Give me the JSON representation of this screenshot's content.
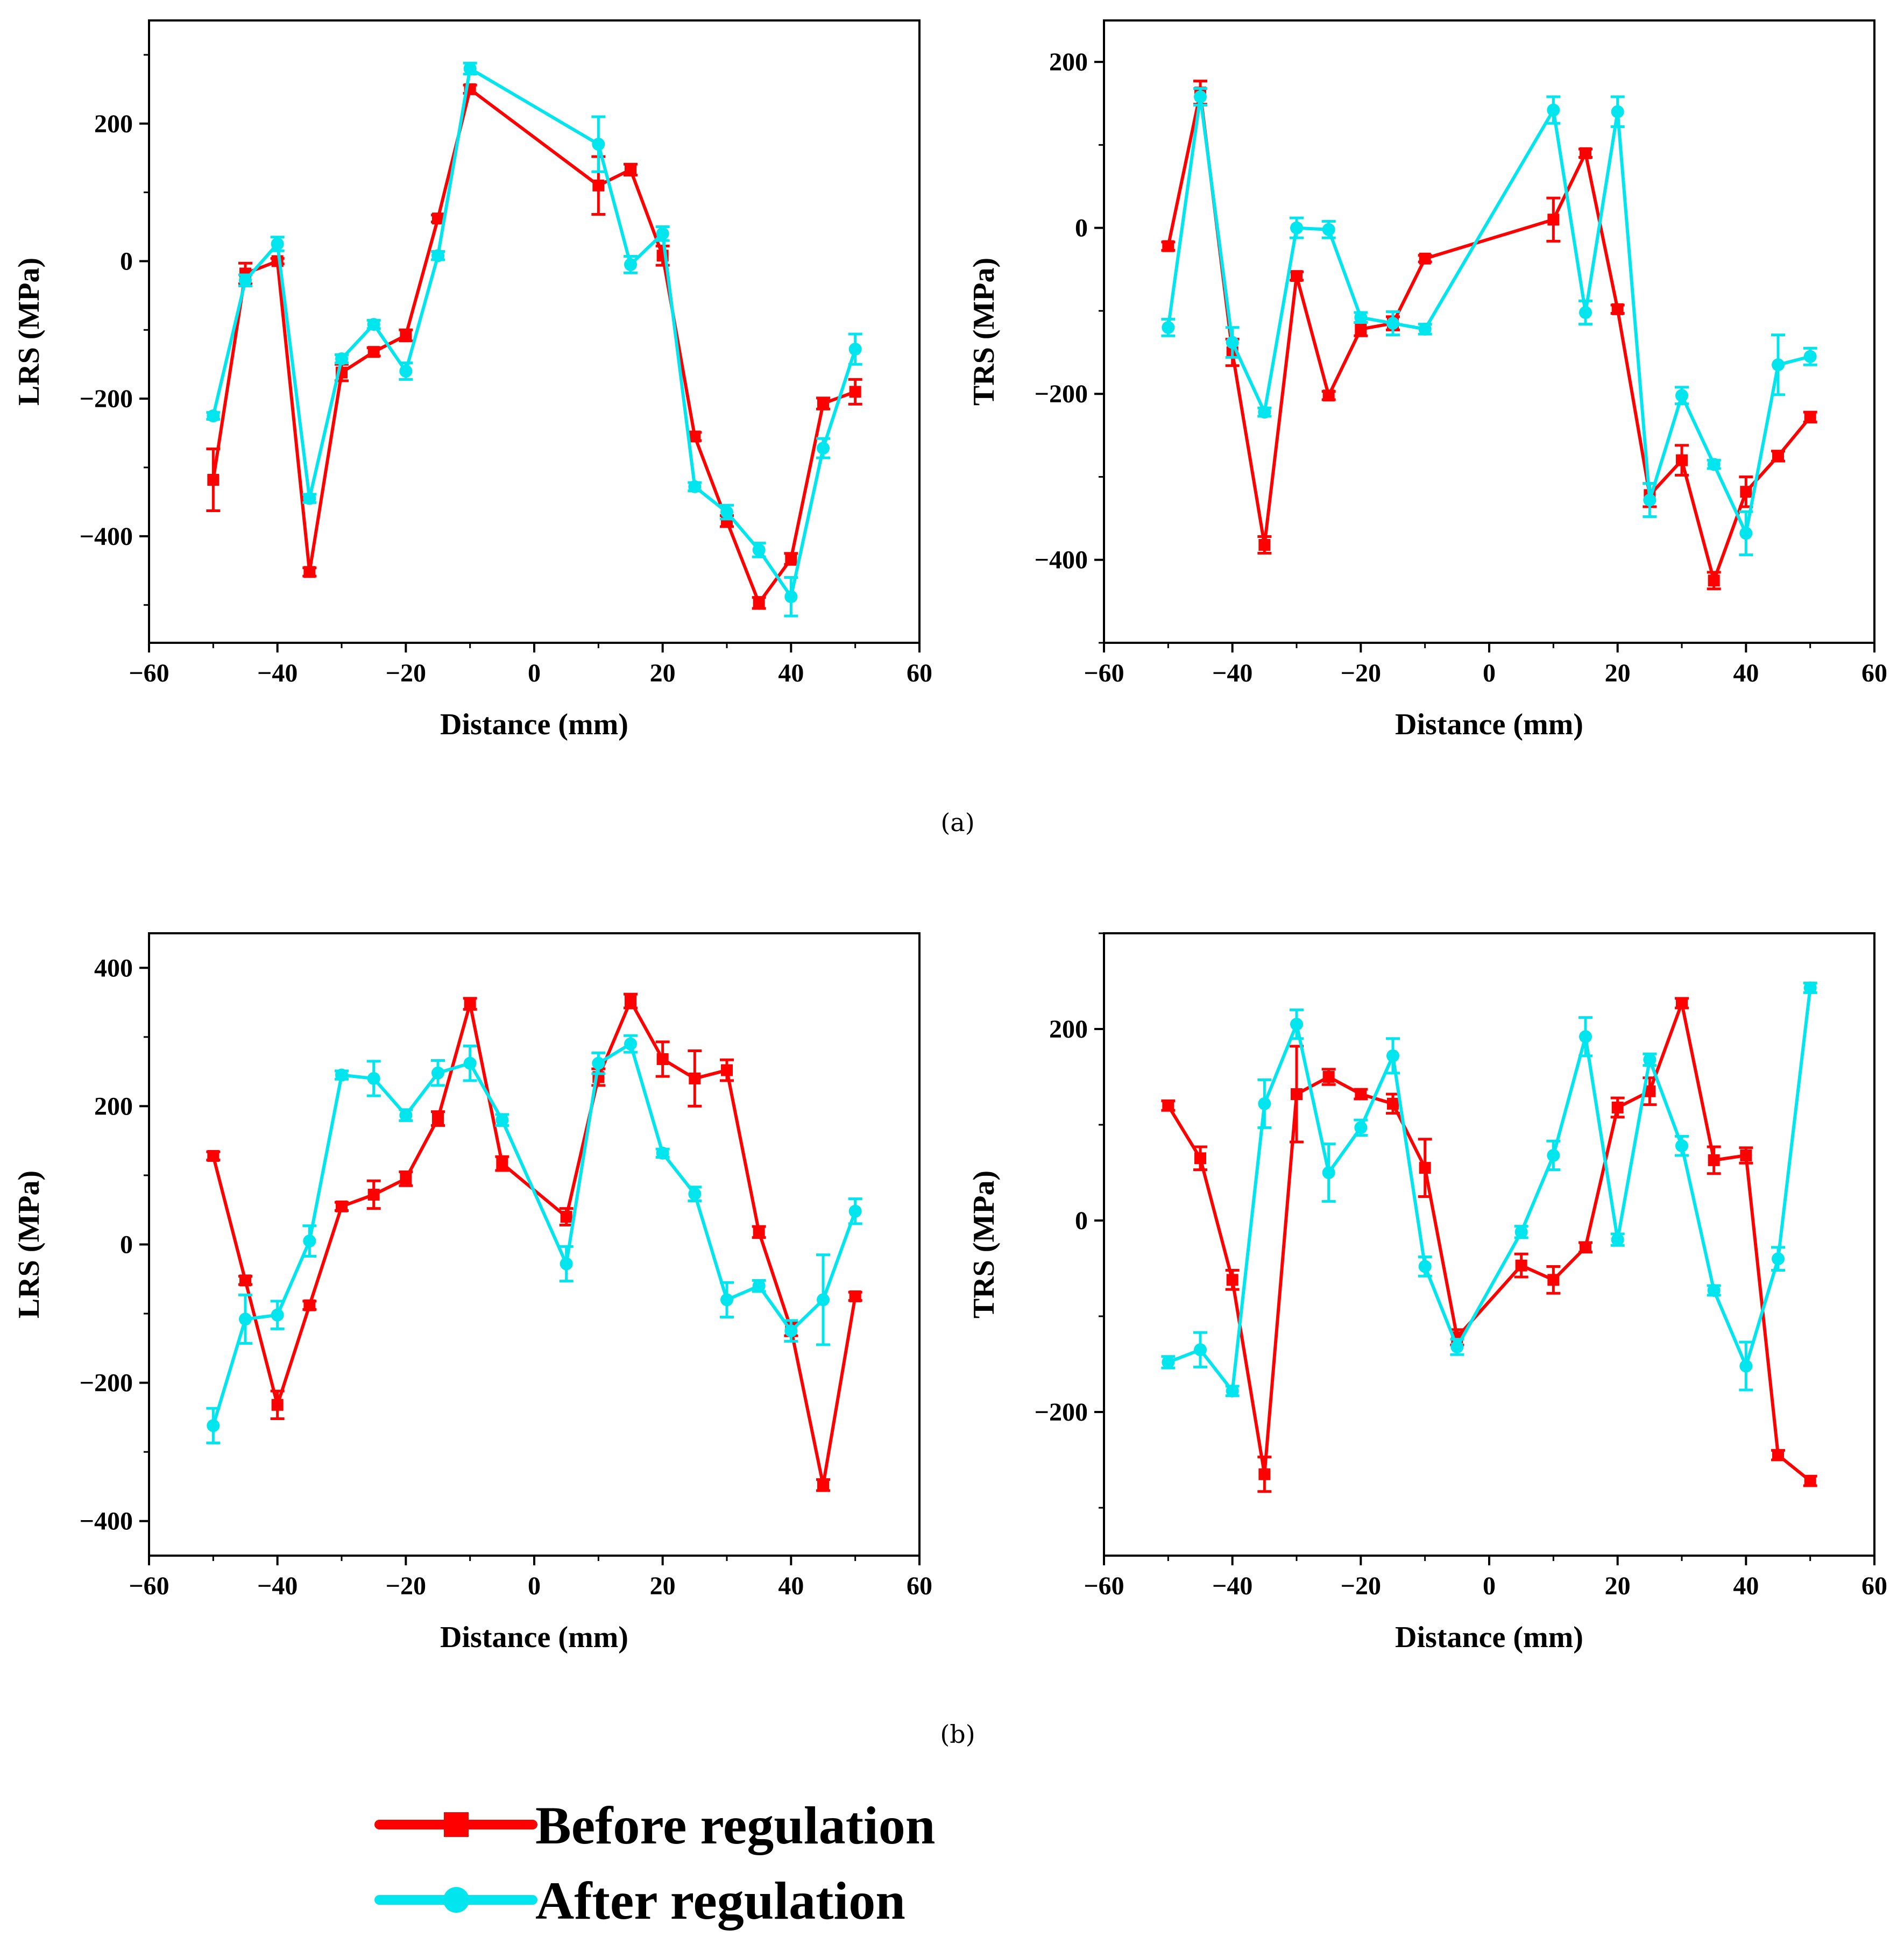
{
  "chart_data": [
    {
      "type": "line",
      "panel": "(a)",
      "xlabel": "Distance (mm)",
      "ylabel": "LRS (MPa)",
      "xlim": [
        -60,
        60
      ],
      "ylim": [
        -555,
        350
      ],
      "xticks": [
        -60,
        -40,
        -20,
        0,
        20,
        40,
        60
      ],
      "yticks": [
        -400,
        -200,
        0,
        200
      ],
      "series": [
        {
          "name": "Before regulation",
          "color": "#ff0000",
          "marker": "square",
          "points": [
            {
              "x": -50,
              "y": -318,
              "err": 45
            },
            {
              "x": -45,
              "y": -18,
              "err": 15
            },
            {
              "x": -40,
              "y": 0,
              "err": 4
            },
            {
              "x": -35,
              "y": -452,
              "err": 6
            },
            {
              "x": -30,
              "y": -162,
              "err": 12
            },
            {
              "x": -25,
              "y": -132,
              "err": 6
            },
            {
              "x": -20,
              "y": -108,
              "err": 8
            },
            {
              "x": -15,
              "y": 62,
              "err": 5
            },
            {
              "x": -10,
              "y": 250,
              "err": 6
            },
            {
              "x": 10,
              "y": 110,
              "err": 42
            },
            {
              "x": 15,
              "y": 133,
              "err": 8
            },
            {
              "x": 20,
              "y": 8,
              "err": 14
            },
            {
              "x": 25,
              "y": -255,
              "err": 6
            },
            {
              "x": 30,
              "y": -378,
              "err": 8
            },
            {
              "x": 35,
              "y": -497,
              "err": 8
            },
            {
              "x": 40,
              "y": -433,
              "err": 8
            },
            {
              "x": 45,
              "y": -207,
              "err": 8
            },
            {
              "x": 50,
              "y": -190,
              "err": 18
            }
          ]
        },
        {
          "name": "After regulation",
          "color": "#00e5ee",
          "marker": "circle",
          "points": [
            {
              "x": -50,
              "y": -225,
              "err": 5
            },
            {
              "x": -45,
              "y": -28,
              "err": 8
            },
            {
              "x": -40,
              "y": 25,
              "err": 10
            },
            {
              "x": -35,
              "y": -345,
              "err": 6
            },
            {
              "x": -30,
              "y": -142,
              "err": 6
            },
            {
              "x": -25,
              "y": -92,
              "err": 6
            },
            {
              "x": -20,
              "y": -160,
              "err": 12
            },
            {
              "x": -15,
              "y": 8,
              "err": 6
            },
            {
              "x": -10,
              "y": 280,
              "err": 8
            },
            {
              "x": 10,
              "y": 170,
              "err": 40
            },
            {
              "x": 15,
              "y": -5,
              "err": 12
            },
            {
              "x": 20,
              "y": 40,
              "err": 10
            },
            {
              "x": 25,
              "y": -328,
              "err": 6
            },
            {
              "x": 30,
              "y": -365,
              "err": 10
            },
            {
              "x": 35,
              "y": -420,
              "err": 10
            },
            {
              "x": 40,
              "y": -488,
              "err": 28
            },
            {
              "x": 45,
              "y": -272,
              "err": 14
            },
            {
              "x": 50,
              "y": -128,
              "err": 22
            }
          ]
        }
      ]
    },
    {
      "type": "line",
      "panel": "(a)",
      "xlabel": "Distance (mm)",
      "ylabel": "TRS (MPa)",
      "xlim": [
        -60,
        60
      ],
      "ylim": [
        -500,
        250
      ],
      "xticks": [
        -60,
        -40,
        -20,
        0,
        20,
        40,
        60
      ],
      "yticks": [
        -400,
        -200,
        0,
        200
      ],
      "series": [
        {
          "name": "Before regulation",
          "color": "#ff0000",
          "marker": "square",
          "points": [
            {
              "x": -50,
              "y": -22,
              "err": 5
            },
            {
              "x": -45,
              "y": 163,
              "err": 14
            },
            {
              "x": -40,
              "y": -150,
              "err": 16
            },
            {
              "x": -35,
              "y": -382,
              "err": 10
            },
            {
              "x": -30,
              "y": -58,
              "err": 5
            },
            {
              "x": -25,
              "y": -202,
              "err": 5
            },
            {
              "x": -20,
              "y": -122,
              "err": 8
            },
            {
              "x": -15,
              "y": -115,
              "err": 8
            },
            {
              "x": -10,
              "y": -37,
              "err": 4
            },
            {
              "x": 10,
              "y": 10,
              "err": 26
            },
            {
              "x": 15,
              "y": 90,
              "err": 5
            },
            {
              "x": 20,
              "y": -98,
              "err": 5
            },
            {
              "x": 25,
              "y": -322,
              "err": 14
            },
            {
              "x": 30,
              "y": -280,
              "err": 18
            },
            {
              "x": 35,
              "y": -425,
              "err": 10
            },
            {
              "x": 40,
              "y": -318,
              "err": 18
            },
            {
              "x": 45,
              "y": -275,
              "err": 6
            },
            {
              "x": 50,
              "y": -228,
              "err": 6
            }
          ]
        },
        {
          "name": "After regulation",
          "color": "#00e5ee",
          "marker": "circle",
          "points": [
            {
              "x": -50,
              "y": -120,
              "err": 10
            },
            {
              "x": -45,
              "y": 158,
              "err": 10
            },
            {
              "x": -40,
              "y": -138,
              "err": 18
            },
            {
              "x": -35,
              "y": -222,
              "err": 5
            },
            {
              "x": -30,
              "y": 0,
              "err": 12
            },
            {
              "x": -25,
              "y": -2,
              "err": 10
            },
            {
              "x": -20,
              "y": -108,
              "err": 6
            },
            {
              "x": -15,
              "y": -115,
              "err": 14
            },
            {
              "x": -10,
              "y": -122,
              "err": 6
            },
            {
              "x": 10,
              "y": 142,
              "err": 16
            },
            {
              "x": 15,
              "y": -102,
              "err": 14
            },
            {
              "x": 20,
              "y": 140,
              "err": 18
            },
            {
              "x": 25,
              "y": -328,
              "err": 20
            },
            {
              "x": 30,
              "y": -202,
              "err": 10
            },
            {
              "x": 35,
              "y": -285,
              "err": 5
            },
            {
              "x": 40,
              "y": -368,
              "err": 26
            },
            {
              "x": 45,
              "y": -165,
              "err": 36
            },
            {
              "x": 50,
              "y": -155,
              "err": 10
            }
          ]
        }
      ]
    },
    {
      "type": "line",
      "panel": "(b)",
      "xlabel": "Distance (mm)",
      "ylabel": "LRS (MPa)",
      "xlim": [
        -60,
        60
      ],
      "ylim": [
        -450,
        450
      ],
      "xticks": [
        -60,
        -40,
        -20,
        0,
        20,
        40,
        60
      ],
      "yticks": [
        -400,
        -200,
        0,
        200,
        400
      ],
      "series": [
        {
          "name": "Before regulation",
          "color": "#ff0000",
          "marker": "square",
          "points": [
            {
              "x": -50,
              "y": 128,
              "err": 6
            },
            {
              "x": -45,
              "y": -52,
              "err": 6
            },
            {
              "x": -40,
              "y": -232,
              "err": 20
            },
            {
              "x": -35,
              "y": -88,
              "err": 6
            },
            {
              "x": -30,
              "y": 55,
              "err": 6
            },
            {
              "x": -25,
              "y": 72,
              "err": 20
            },
            {
              "x": -20,
              "y": 95,
              "err": 10
            },
            {
              "x": -15,
              "y": 182,
              "err": 10
            },
            {
              "x": -10,
              "y": 348,
              "err": 8
            },
            {
              "x": -5,
              "y": 117,
              "err": 10
            },
            {
              "x": 5,
              "y": 40,
              "err": 12
            },
            {
              "x": 10,
              "y": 242,
              "err": 12
            },
            {
              "x": 15,
              "y": 352,
              "err": 10
            },
            {
              "x": 20,
              "y": 268,
              "err": 25
            },
            {
              "x": 25,
              "y": 240,
              "err": 40
            },
            {
              "x": 30,
              "y": 252,
              "err": 15
            },
            {
              "x": 35,
              "y": 18,
              "err": 8
            },
            {
              "x": 40,
              "y": -122,
              "err": 10
            },
            {
              "x": 45,
              "y": -348,
              "err": 8
            },
            {
              "x": 50,
              "y": -75,
              "err": 6
            }
          ]
        },
        {
          "name": "After regulation",
          "color": "#00e5ee",
          "marker": "circle",
          "points": [
            {
              "x": -50,
              "y": -262,
              "err": 25
            },
            {
              "x": -45,
              "y": -108,
              "err": 35
            },
            {
              "x": -40,
              "y": -102,
              "err": 20
            },
            {
              "x": -35,
              "y": 5,
              "err": 22
            },
            {
              "x": -30,
              "y": 245,
              "err": 6
            },
            {
              "x": -25,
              "y": 240,
              "err": 25
            },
            {
              "x": -20,
              "y": 187,
              "err": 8
            },
            {
              "x": -15,
              "y": 248,
              "err": 18
            },
            {
              "x": -10,
              "y": 262,
              "err": 25
            },
            {
              "x": -5,
              "y": 180,
              "err": 8
            },
            {
              "x": 5,
              "y": -28,
              "err": 25
            },
            {
              "x": 10,
              "y": 262,
              "err": 15
            },
            {
              "x": 15,
              "y": 290,
              "err": 12
            },
            {
              "x": 20,
              "y": 132,
              "err": 6
            },
            {
              "x": 25,
              "y": 73,
              "err": 10
            },
            {
              "x": 30,
              "y": -80,
              "err": 25
            },
            {
              "x": 35,
              "y": -60,
              "err": 8
            },
            {
              "x": 40,
              "y": -125,
              "err": 15
            },
            {
              "x": 45,
              "y": -80,
              "err": 65
            },
            {
              "x": 50,
              "y": 48,
              "err": 18
            }
          ]
        }
      ]
    },
    {
      "type": "line",
      "panel": "(b)",
      "xlabel": "Distance (mm)",
      "ylabel": "TRS (MPa)",
      "xlim": [
        -60,
        60
      ],
      "ylim": [
        -350,
        300
      ],
      "xticks": [
        -60,
        -40,
        -20,
        0,
        20,
        40,
        60
      ],
      "yticks": [
        -200,
        0,
        200
      ],
      "series": [
        {
          "name": "Before regulation",
          "color": "#ff0000",
          "marker": "square",
          "points": [
            {
              "x": -50,
              "y": 120,
              "err": 5
            },
            {
              "x": -45,
              "y": 65,
              "err": 12
            },
            {
              "x": -40,
              "y": -62,
              "err": 10
            },
            {
              "x": -35,
              "y": -265,
              "err": 18
            },
            {
              "x": -30,
              "y": 132,
              "err": 50
            },
            {
              "x": -25,
              "y": 150,
              "err": 8
            },
            {
              "x": -20,
              "y": 132,
              "err": 5
            },
            {
              "x": -15,
              "y": 122,
              "err": 10
            },
            {
              "x": -10,
              "y": 55,
              "err": 30
            },
            {
              "x": -5,
              "y": -122,
              "err": 8
            },
            {
              "x": 5,
              "y": -47,
              "err": 12
            },
            {
              "x": 10,
              "y": -62,
              "err": 14
            },
            {
              "x": 15,
              "y": -28,
              "err": 5
            },
            {
              "x": 20,
              "y": 118,
              "err": 10
            },
            {
              "x": 25,
              "y": 135,
              "err": 14
            },
            {
              "x": 30,
              "y": 227,
              "err": 5
            },
            {
              "x": 35,
              "y": 63,
              "err": 14
            },
            {
              "x": 40,
              "y": 68,
              "err": 8
            },
            {
              "x": 45,
              "y": -245,
              "err": 5
            },
            {
              "x": 50,
              "y": -272,
              "err": 5
            }
          ]
        },
        {
          "name": "After regulation",
          "color": "#00e5ee",
          "marker": "circle",
          "points": [
            {
              "x": -50,
              "y": -148,
              "err": 6
            },
            {
              "x": -45,
              "y": -135,
              "err": 18
            },
            {
              "x": -40,
              "y": -178,
              "err": 5
            },
            {
              "x": -35,
              "y": 122,
              "err": 25
            },
            {
              "x": -30,
              "y": 205,
              "err": 15
            },
            {
              "x": -25,
              "y": 50,
              "err": 30
            },
            {
              "x": -20,
              "y": 97,
              "err": 8
            },
            {
              "x": -15,
              "y": 172,
              "err": 18
            },
            {
              "x": -10,
              "y": -48,
              "err": 10
            },
            {
              "x": -5,
              "y": -132,
              "err": 8
            },
            {
              "x": 5,
              "y": -12,
              "err": 6
            },
            {
              "x": 10,
              "y": 68,
              "err": 15
            },
            {
              "x": 15,
              "y": 192,
              "err": 20
            },
            {
              "x": 20,
              "y": -20,
              "err": 6
            },
            {
              "x": 25,
              "y": 168,
              "err": 6
            },
            {
              "x": 30,
              "y": 78,
              "err": 10
            },
            {
              "x": 35,
              "y": -73,
              "err": 5
            },
            {
              "x": 40,
              "y": -152,
              "err": 25
            },
            {
              "x": 45,
              "y": -40,
              "err": 12
            },
            {
              "x": 50,
              "y": 243,
              "err": 5
            }
          ]
        }
      ]
    }
  ],
  "captions": {
    "a": "(a)",
    "b": "(b)"
  },
  "legend": {
    "items": [
      {
        "label": "Before regulation",
        "color": "#ff0000",
        "marker": "square"
      },
      {
        "label": "After regulation",
        "color": "#00e5ee",
        "marker": "circle"
      }
    ]
  }
}
